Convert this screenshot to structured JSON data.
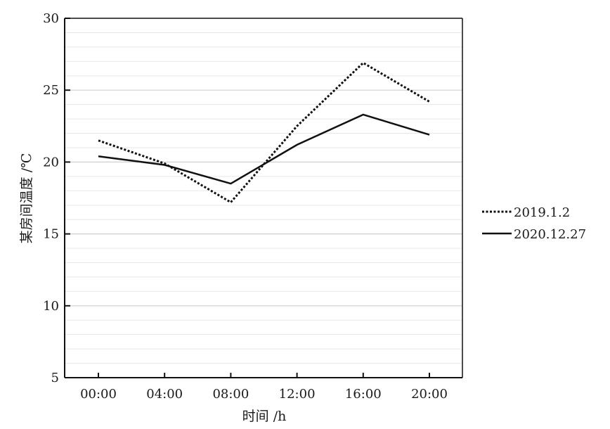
{
  "chart_data": {
    "type": "line",
    "categories": [
      "00:00",
      "04:00",
      "08:00",
      "12:00",
      "16:00",
      "20:00"
    ],
    "series": [
      {
        "name": "2019.1.2",
        "values": [
          21.5,
          19.9,
          17.2,
          22.5,
          26.9,
          24.2
        ],
        "style": "dotted"
      },
      {
        "name": "2020.12.27",
        "values": [
          20.4,
          19.8,
          18.5,
          21.2,
          23.3,
          21.9
        ],
        "style": "solid"
      }
    ],
    "xlabel": "时间 /h",
    "ylabel": "某房间温度 /℃",
    "ylim": [
      5,
      30
    ],
    "yticks": [
      5,
      10,
      15,
      20,
      25,
      30
    ],
    "grid": true,
    "legend": "right",
    "colors": {
      "line": "#111111",
      "grid": "#d9d9d9",
      "axis": "#111111"
    }
  }
}
